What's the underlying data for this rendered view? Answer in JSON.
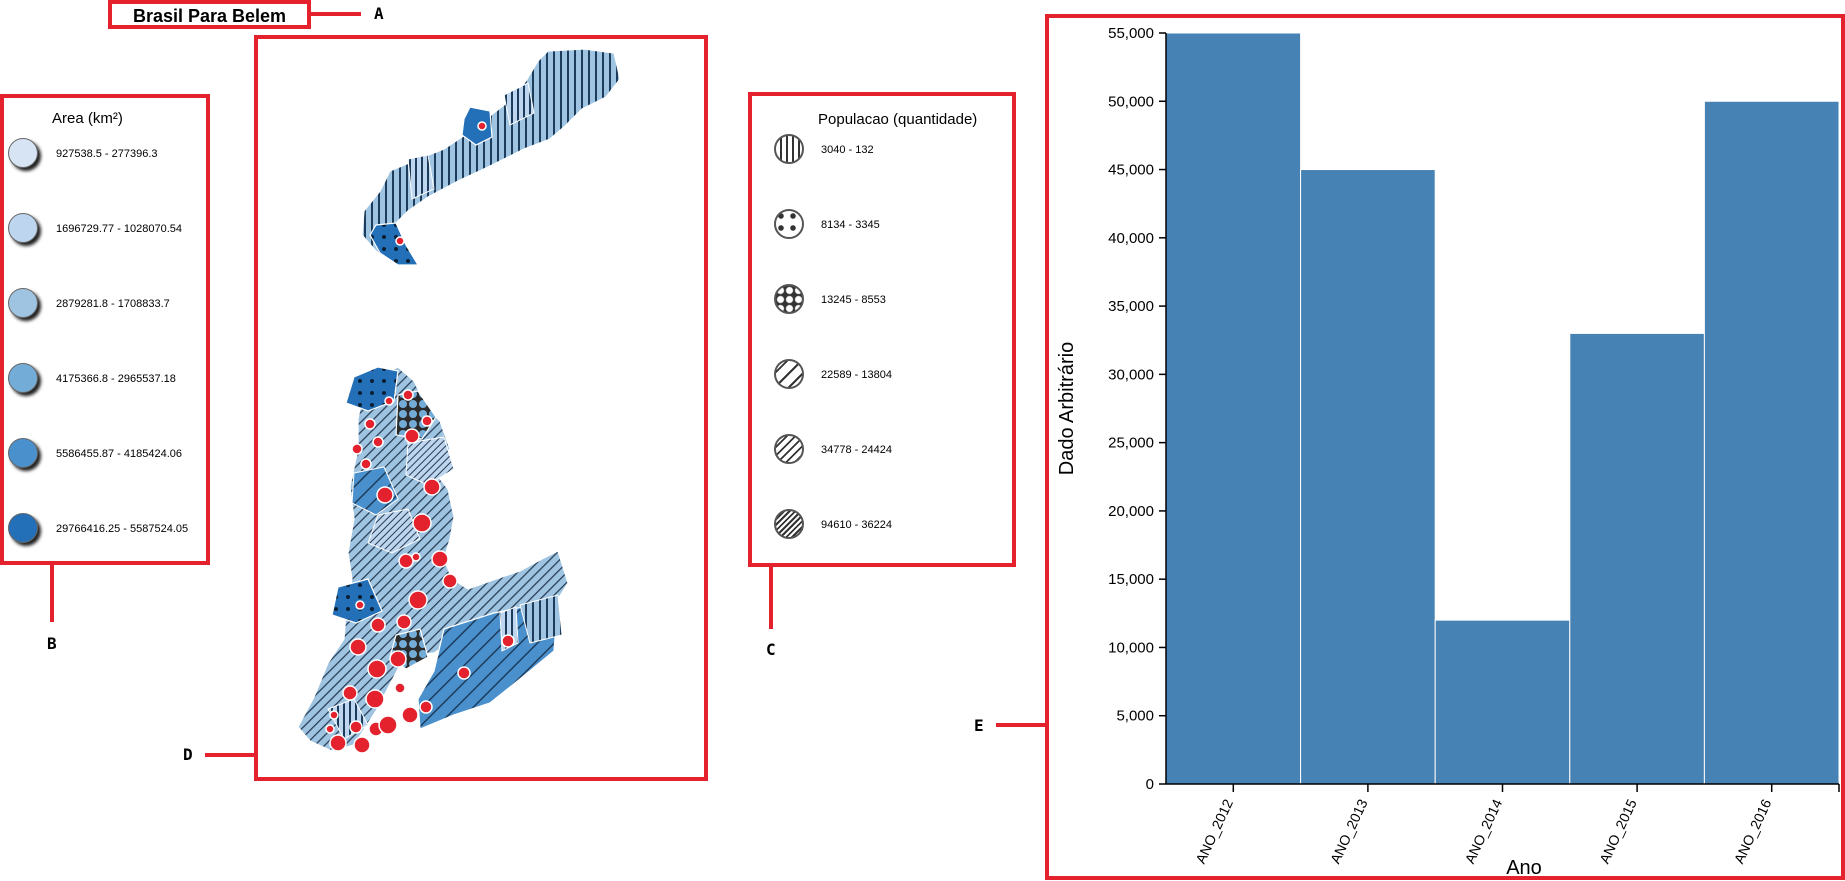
{
  "title": "Brasil Para Belem",
  "callouts": {
    "a": "A",
    "b": "B",
    "c": "C",
    "d": "D",
    "e": "E"
  },
  "legend_area": {
    "title": "Area (km²)",
    "items": [
      {
        "label": "927538.5 - 277396.3",
        "color": "#d6e4f4"
      },
      {
        "label": "1696729.77 - 1028070.54",
        "color": "#bdd5ee"
      },
      {
        "label": "2879281.8 - 1708833.7",
        "color": "#9ec4e2"
      },
      {
        "label": "4175366.8 - 2965537.18",
        "color": "#74acd8"
      },
      {
        "label": "5586455.87 - 4185424.06",
        "color": "#4a90cc"
      },
      {
        "label": "29766416.25 - 5587524.05",
        "color": "#2370b8"
      }
    ]
  },
  "legend_pop": {
    "title": "Populacao (quantidade)",
    "items": [
      {
        "label": "3040 - 132",
        "pattern": "vertical-lines-icon"
      },
      {
        "label": "8134 - 3345",
        "pattern": "dots-icon"
      },
      {
        "label": "13245 - 8553",
        "pattern": "circles-icon"
      },
      {
        "label": "22589 - 13804",
        "pattern": "diagonal-lines-sparse-icon"
      },
      {
        "label": "34778 - 24424",
        "pattern": "diagonal-lines-medium-icon"
      },
      {
        "label": "94610 - 36224",
        "pattern": "diagonal-lines-dense-icon"
      }
    ]
  },
  "chart_data": {
    "type": "bar",
    "categories": [
      "ANO_2012",
      "ANO_2013",
      "ANO_2014",
      "ANO_2015",
      "ANO_2016"
    ],
    "values": [
      55000,
      45000,
      12000,
      33000,
      50000
    ],
    "xlabel": "Ano",
    "ylabel": "Dado Arbitrário",
    "ylim": [
      0,
      55000
    ],
    "yticks": [
      "0",
      "5,000",
      "10,000",
      "15,000",
      "20,000",
      "25,000",
      "30,000",
      "35,000",
      "40,000",
      "45,000",
      "50,000",
      "55,000"
    ],
    "bar_color": "#4682b4"
  }
}
